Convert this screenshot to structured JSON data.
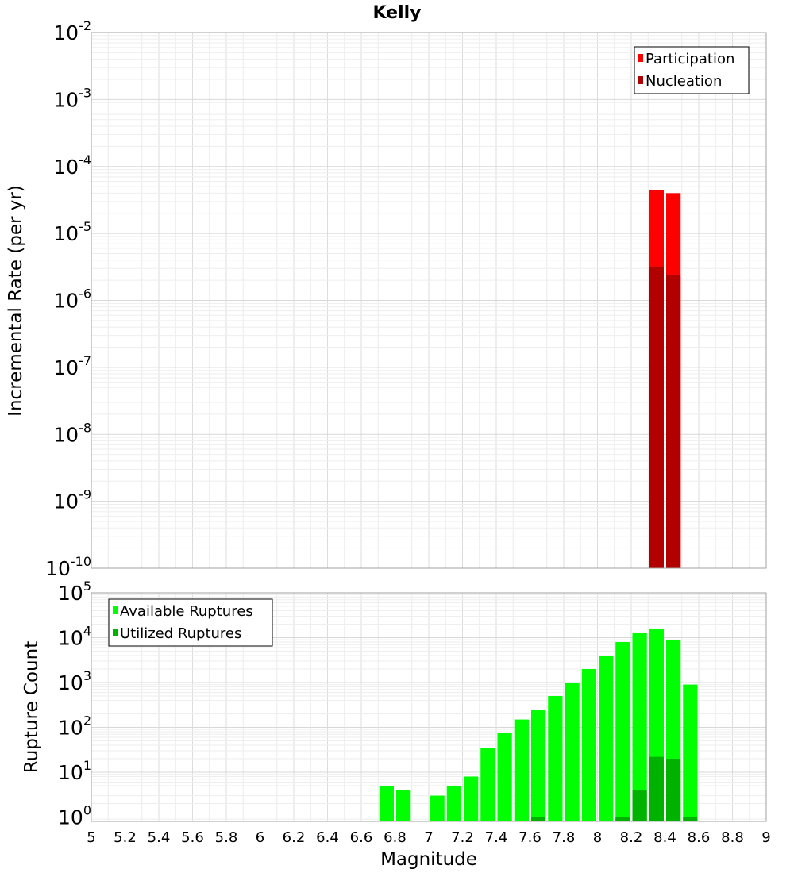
{
  "title": "Kelly",
  "x_axis": {
    "label": "Magnitude",
    "ticks": [
      "5",
      "5.2",
      "5.4",
      "5.6",
      "5.8",
      "6",
      "6.2",
      "6.4",
      "6.6",
      "6.8",
      "7",
      "7.2",
      "7.4",
      "7.6",
      "7.8",
      "8",
      "8.2",
      "8.4",
      "8.6",
      "8.8",
      "9"
    ]
  },
  "chart_data": [
    {
      "type": "bar",
      "ylabel": "Incremental Rate (per yr)",
      "xlabel": "",
      "xlim": [
        5,
        9
      ],
      "ylim": [
        1e-10,
        0.01
      ],
      "y_scale": "log",
      "y_ticks": [
        {
          "base": "10",
          "exp": "-2"
        },
        {
          "base": "10",
          "exp": "-3"
        },
        {
          "base": "10",
          "exp": "-4"
        },
        {
          "base": "10",
          "exp": "-5"
        },
        {
          "base": "10",
          "exp": "-6"
        },
        {
          "base": "10",
          "exp": "-7"
        },
        {
          "base": "10",
          "exp": "-8"
        },
        {
          "base": "10",
          "exp": "-9"
        },
        {
          "base": "10",
          "exp": "-10"
        }
      ],
      "grid": true,
      "legend_position": "top-right",
      "bar_width": 0.1,
      "series": [
        {
          "name": "Participation",
          "color": "#ff0000",
          "x": [
            8.35,
            8.45
          ],
          "values": [
            4.5e-05,
            4e-05
          ]
        },
        {
          "name": "Nucleation",
          "color": "#b20000",
          "x": [
            8.35,
            8.45
          ],
          "values": [
            3.2e-06,
            2.4e-06
          ]
        }
      ]
    },
    {
      "type": "bar",
      "ylabel": "Rupture Count",
      "xlabel": "Magnitude",
      "xlim": [
        5,
        9
      ],
      "ylim": [
        0.8,
        100000.0
      ],
      "y_scale": "log",
      "y_ticks": [
        {
          "base": "10",
          "exp": "5"
        },
        {
          "base": "10",
          "exp": "4"
        },
        {
          "base": "10",
          "exp": "3"
        },
        {
          "base": "10",
          "exp": "2"
        },
        {
          "base": "10",
          "exp": "1"
        },
        {
          "base": "10",
          "exp": "0"
        }
      ],
      "grid": true,
      "legend_position": "top-left",
      "bar_width": 0.1,
      "series": [
        {
          "name": "Available Ruptures",
          "color": "#00ff00",
          "x": [
            6.75,
            6.85,
            7.05,
            7.15,
            7.25,
            7.35,
            7.45,
            7.55,
            7.65,
            7.75,
            7.85,
            7.95,
            8.05,
            8.15,
            8.25,
            8.35,
            8.45,
            8.55
          ],
          "values": [
            5,
            4,
            3,
            5,
            8,
            35,
            75,
            150,
            250,
            500,
            1000,
            2000,
            4000,
            8000,
            13000,
            16000,
            9000,
            900
          ]
        },
        {
          "name": "Utilized Ruptures",
          "color": "#00b200",
          "x": [
            7.65,
            8.15,
            8.25,
            8.35,
            8.45,
            8.55
          ],
          "values": [
            1,
            1,
            4,
            22,
            20,
            1
          ]
        }
      ]
    }
  ]
}
